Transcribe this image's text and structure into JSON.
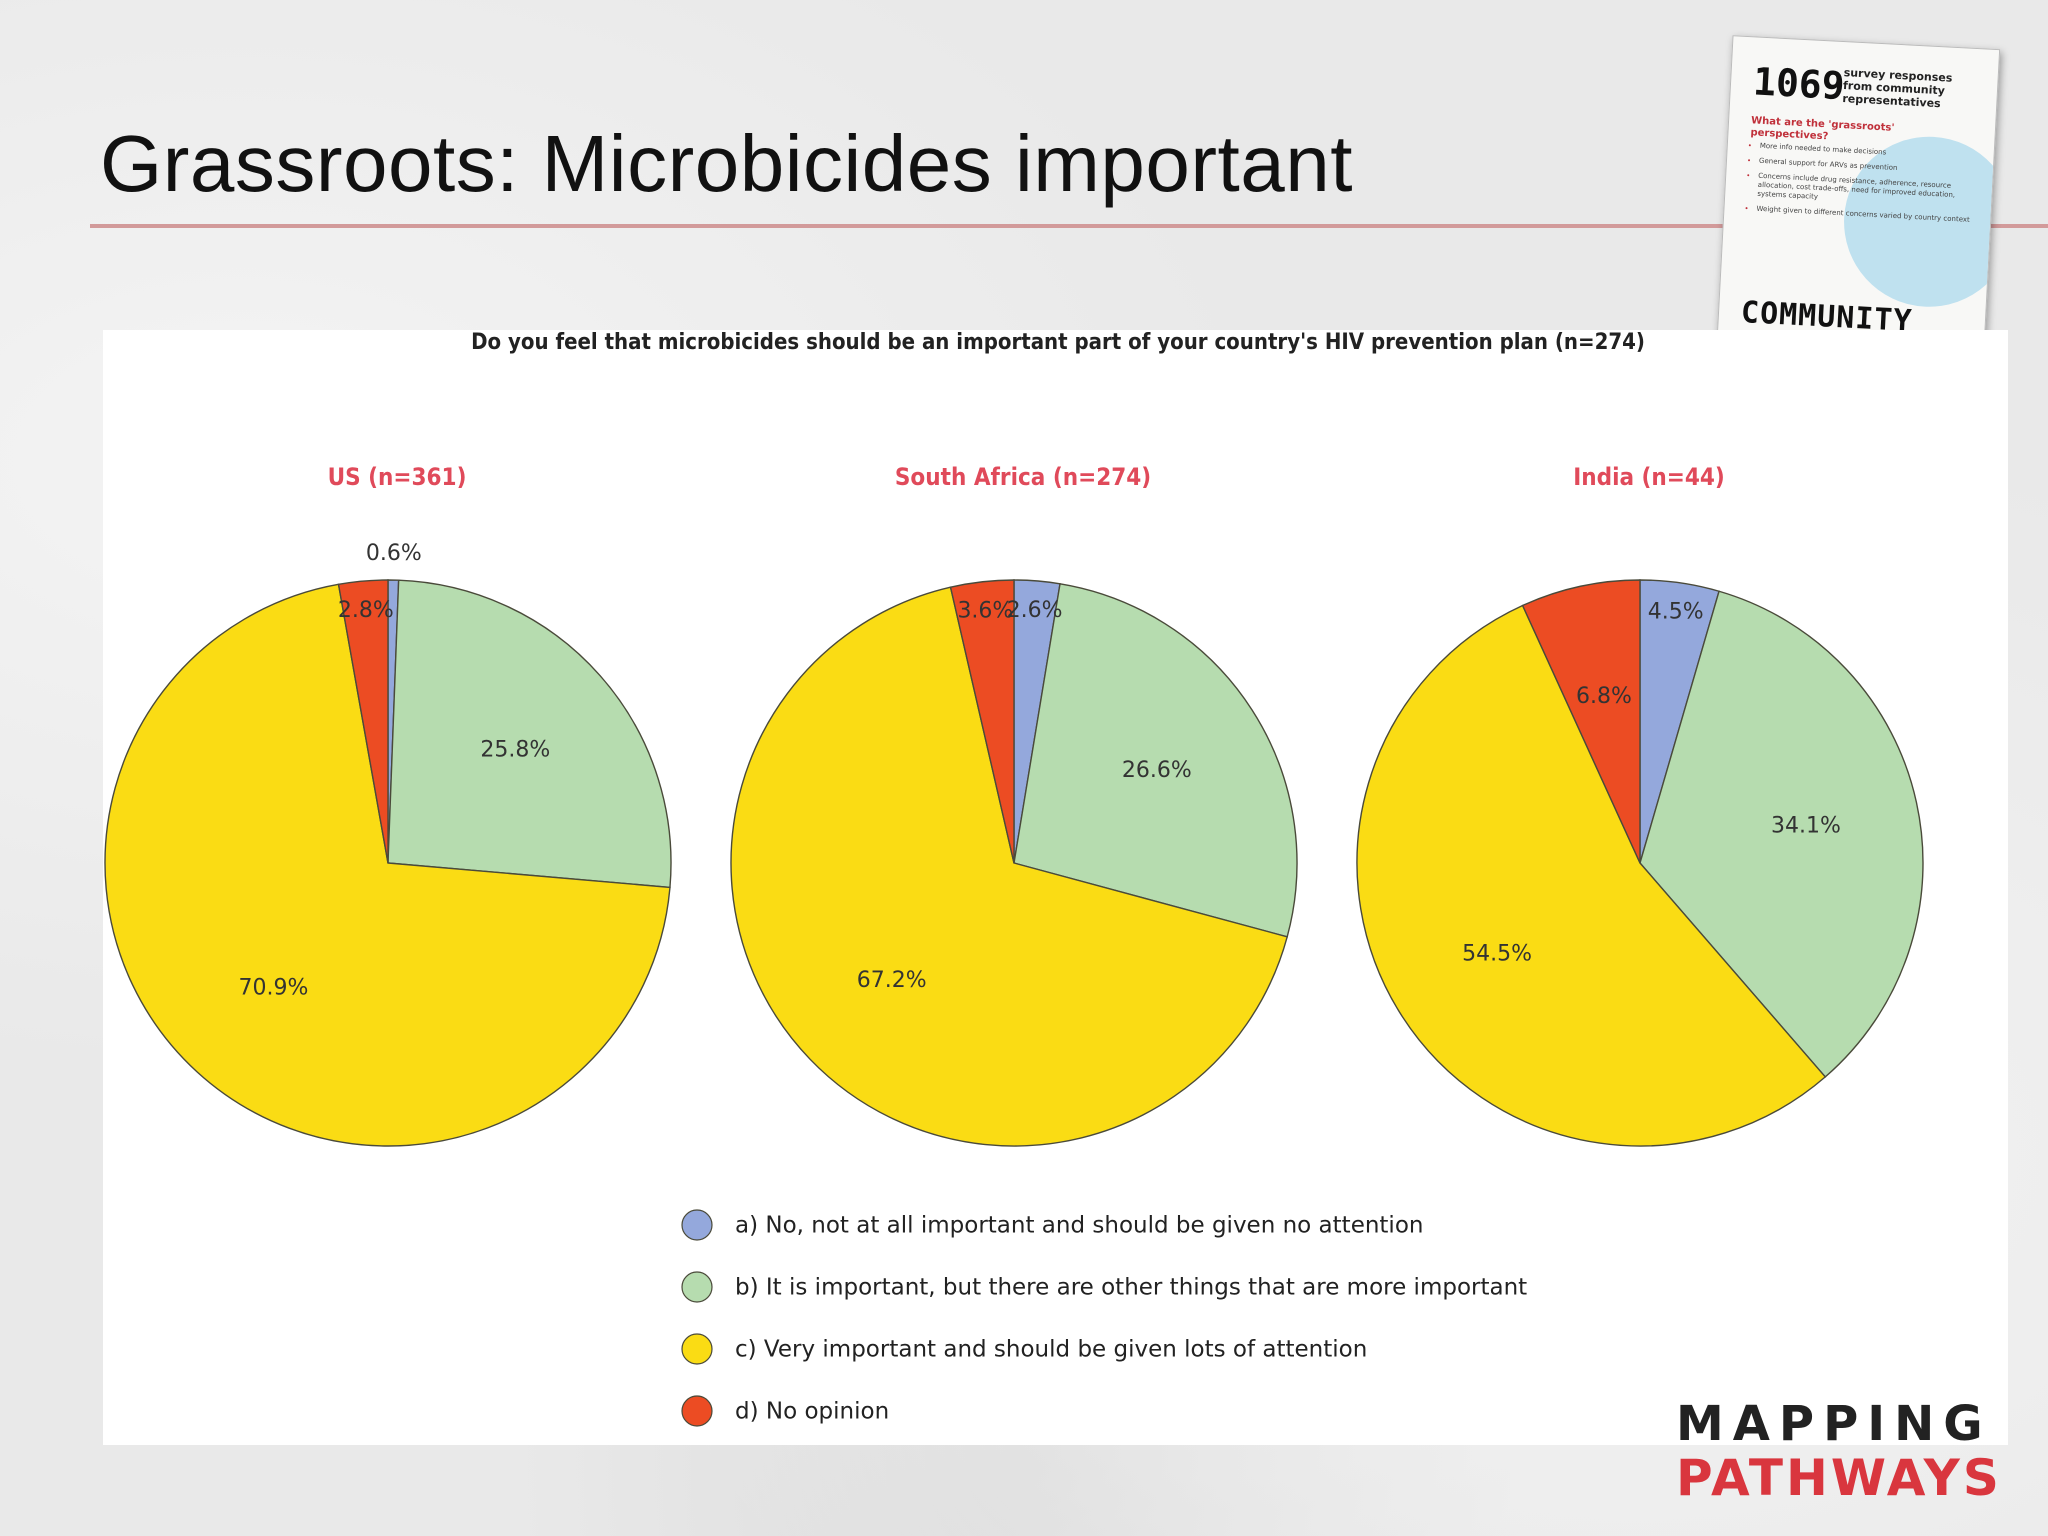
{
  "slide": {
    "title": "Grassroots: Microbicides important"
  },
  "survey_card": {
    "count": "1069",
    "caption": "survey responses from community representatives",
    "question": "What are the 'grassroots' perspectives?",
    "bullets": [
      "More info needed to make decisions",
      "General support for ARVs as prevention",
      "Concerns include drug resistance, adherence, resource allocation, cost trade-offs, need for improved education, systems capacity",
      "Weight given to different concerns varied by country context"
    ],
    "stamp": "COMMUNITY"
  },
  "logo": {
    "line1": "MAPPING",
    "line2": "PATHWAYS"
  },
  "colors": {
    "a": "#94a8dc",
    "b": "#b6dcaf",
    "c": "#fadc14",
    "d": "#ec4c23",
    "pie_title": "#e04a5a",
    "outline": "#4a4a3a"
  },
  "chart_data": {
    "type": "pie",
    "title": "Do you feel that microbicides should be an important part of your country's HIV prevention plan (n=274)",
    "categories": [
      "a) No, not at all important and should be given no attention",
      "b) It is important, but there are other things that are more important",
      "c) Very important and should be given lots of attention",
      "d) No opinion"
    ],
    "legend_placement": "bottom",
    "series": [
      {
        "name": "US (n=361)",
        "values": [
          0.6,
          25.8,
          70.9,
          2.8
        ],
        "labels": [
          "0.6%",
          "25.8%",
          "70.9%",
          "2.8%"
        ]
      },
      {
        "name": "South Africa (n=274)",
        "values": [
          2.6,
          26.6,
          67.2,
          3.6
        ],
        "labels": [
          "2.6%",
          "26.6%",
          "67.2%",
          "3.6%"
        ]
      },
      {
        "name": "India (n=44)",
        "values": [
          4.5,
          34.1,
          54.5,
          6.8
        ],
        "labels": [
          "4.5%",
          "34.1%",
          "54.5%",
          "6.8%"
        ]
      }
    ]
  }
}
